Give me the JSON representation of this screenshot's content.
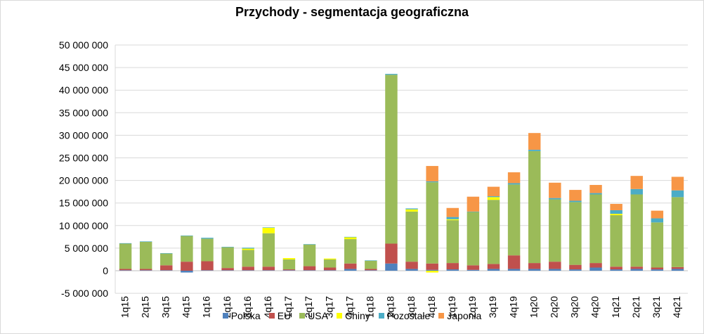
{
  "chart_data": {
    "type": "bar",
    "stacked": true,
    "title": "Przychody - segmentacja geograficzna",
    "xlabel": "",
    "ylabel": "",
    "ylim": [
      -5000000,
      50000000
    ],
    "yticks": [
      -5000000,
      0,
      5000000,
      10000000,
      15000000,
      20000000,
      25000000,
      30000000,
      35000000,
      40000000,
      45000000,
      50000000
    ],
    "ytick_labels": [
      "-5 000 000",
      "0",
      "5 000 000",
      "10 000 000",
      "15 000 000",
      "20 000 000",
      "25 000 000",
      "30 000 000",
      "35 000 000",
      "40 000 000",
      "45 000 000",
      "50 000 000"
    ],
    "grid": true,
    "legend_position": "bottom",
    "categories": [
      "1q15",
      "2q15",
      "3q15",
      "4q15",
      "1q16",
      "2q16",
      "3q16",
      "4q16",
      "1q17",
      "2q17",
      "3q17",
      "4q17",
      "1q18",
      "2q18",
      "3q18",
      "4q18",
      "1q19",
      "2q19",
      "3q19",
      "4q19",
      "1q20",
      "2q20",
      "3q20",
      "4q20",
      "1q21",
      "2q21",
      "3q21",
      "4q21"
    ],
    "series": [
      {
        "name": "Polska",
        "color": "#4F81BD",
        "values": [
          100000,
          100000,
          100000,
          -400000,
          100000,
          100000,
          100000,
          100000,
          100000,
          100000,
          100000,
          400000,
          100000,
          1600000,
          400000,
          200000,
          300000,
          200000,
          400000,
          400000,
          400000,
          400000,
          300000,
          700000,
          300000,
          400000,
          300000,
          400000
        ]
      },
      {
        "name": "EU",
        "color": "#C0504D",
        "values": [
          300000,
          300000,
          1100000,
          2000000,
          2000000,
          500000,
          800000,
          800000,
          200000,
          900000,
          600000,
          1200000,
          300000,
          4400000,
          1600000,
          1400000,
          1400000,
          1000000,
          1100000,
          3000000,
          1300000,
          1600000,
          1000000,
          1000000,
          600000,
          500000,
          400000,
          400000
        ]
      },
      {
        "name": "USA",
        "color": "#9BBB59",
        "values": [
          5600000,
          6000000,
          2600000,
          5700000,
          5000000,
          4600000,
          3700000,
          7400000,
          2200000,
          4800000,
          1800000,
          5400000,
          1800000,
          37400000,
          11100000,
          18000000,
          9500000,
          11800000,
          14200000,
          15700000,
          24800000,
          13800000,
          13900000,
          15200000,
          11400000,
          16000000,
          10000000,
          15500000
        ]
      },
      {
        "name": "Chiny",
        "color": "#FFFF00",
        "values": [
          0,
          0,
          0,
          0,
          0,
          0,
          300000,
          1200000,
          300000,
          0,
          200000,
          400000,
          0,
          0,
          500000,
          -400000,
          200000,
          0,
          600000,
          0,
          0,
          0,
          0,
          0,
          300000,
          0,
          0,
          0
        ]
      },
      {
        "name": "Pozostałe",
        "color": "#4BACC6",
        "values": [
          100000,
          100000,
          100000,
          100000,
          200000,
          100000,
          200000,
          100000,
          0,
          100000,
          0,
          100000,
          100000,
          200000,
          200000,
          200000,
          500000,
          100000,
          200000,
          300000,
          300000,
          300000,
          300000,
          300000,
          800000,
          1200000,
          900000,
          1500000
        ]
      },
      {
        "name": "Japonia",
        "color": "#F79646",
        "values": [
          0,
          0,
          0,
          0,
          0,
          0,
          0,
          0,
          0,
          0,
          0,
          0,
          0,
          0,
          0,
          3400000,
          2000000,
          3300000,
          2100000,
          2400000,
          3700000,
          3400000,
          2400000,
          1800000,
          1400000,
          2900000,
          1700000,
          3000000
        ]
      }
    ]
  }
}
